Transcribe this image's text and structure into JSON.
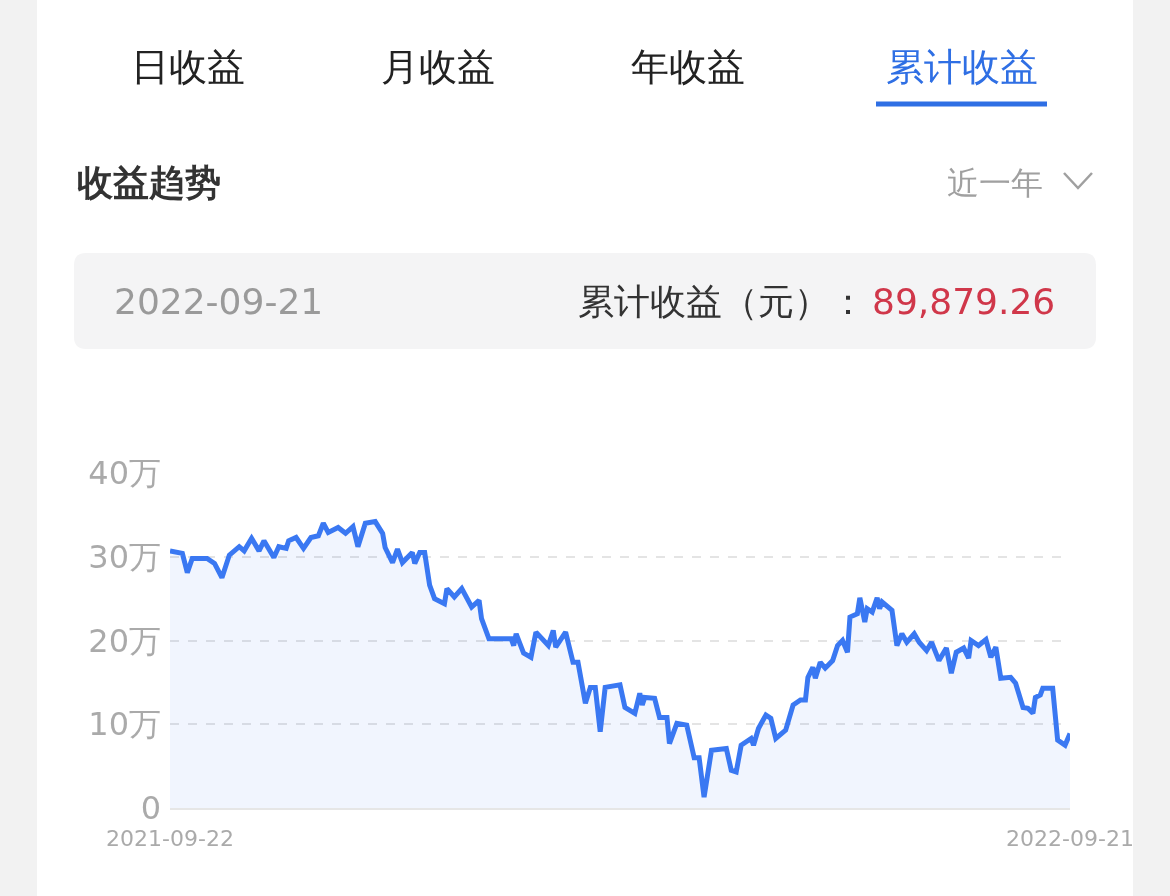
{
  "chart_data": {
    "type": "area",
    "title": "收益趋势",
    "annotations": [
      "日收益",
      "月收益",
      "年收益",
      "累计收益",
      "近一年",
      "2022-09-21",
      "累计收益（元）：",
      "89,879.26"
    ],
    "x": [
      "2021-09-22",
      "2021-09-27",
      "2021-09-29",
      "2021-10-01",
      "2021-10-07",
      "2021-10-10",
      "2021-10-13",
      "2021-10-16",
      "2021-10-20",
      "2021-10-22",
      "2021-10-25",
      "2021-10-28",
      "2021-10-30",
      "2021-11-03",
      "2021-11-05",
      "2021-11-08",
      "2021-11-09",
      "2021-11-12",
      "2021-11-15",
      "2021-11-18",
      "2021-11-21",
      "2021-11-23",
      "2021-11-25",
      "2021-11-29",
      "2021-12-02",
      "2021-12-05",
      "2021-12-07",
      "2021-12-10",
      "2021-12-14",
      "2021-12-17",
      "2021-12-18",
      "2021-12-21",
      "2021-12-23",
      "2021-12-25",
      "2021-12-29",
      "2021-12-30",
      "2022-01-01",
      "2022-01-03",
      "2022-01-05",
      "2022-01-07",
      "2022-01-11",
      "2022-01-12",
      "2022-01-15",
      "2022-01-18",
      "2022-01-22",
      "2022-01-25",
      "2022-01-26",
      "2022-01-29",
      "2022-02-07",
      "2022-02-08",
      "2022-02-09",
      "2022-02-12",
      "2022-02-15",
      "2022-02-17",
      "2022-02-22",
      "2022-02-24",
      "2022-02-25",
      "2022-03-01",
      "2022-03-04",
      "2022-03-06",
      "2022-03-09",
      "2022-03-11",
      "2022-03-13",
      "2022-03-15",
      "2022-03-17",
      "2022-03-23",
      "2022-03-25",
      "2022-03-29",
      "2022-03-31",
      "2022-04-01",
      "2022-04-02",
      "2022-04-06",
      "2022-04-08",
      "2022-04-11",
      "2022-04-12",
      "2022-04-15",
      "2022-04-19",
      "2022-04-22",
      "2022-04-24",
      "2022-04-26",
      "2022-04-29",
      "2022-05-05",
      "2022-05-07",
      "2022-05-09",
      "2022-05-11",
      "2022-05-15",
      "2022-05-16",
      "2022-05-18",
      "2022-05-21",
      "2022-05-23",
      "2022-05-25",
      "2022-05-29",
      "2022-06-01",
      "2022-06-04",
      "2022-06-06",
      "2022-06-07",
      "2022-06-09",
      "2022-06-10",
      "2022-06-12",
      "2022-06-14",
      "2022-06-17",
      "2022-06-19",
      "2022-06-21",
      "2022-06-23",
      "2022-06-24",
      "2022-06-27",
      "2022-06-28",
      "2022-06-30",
      "2022-07-01",
      "2022-07-03",
      "2022-07-05",
      "2022-07-06",
      "2022-07-07",
      "2022-07-11",
      "2022-07-13",
      "2022-07-15",
      "2022-07-17",
      "2022-07-20",
      "2022-07-22",
      "2022-07-25",
      "2022-07-27",
      "2022-07-30",
      "2022-08-02",
      "2022-08-04",
      "2022-08-06",
      "2022-08-09",
      "2022-08-11",
      "2022-08-12",
      "2022-08-15",
      "2022-08-18",
      "2022-08-20",
      "2022-08-22",
      "2022-08-24",
      "2022-08-28",
      "2022-08-30",
      "2022-09-02",
      "2022-09-04",
      "2022-09-06",
      "2022-09-07",
      "2022-09-09",
      "2022-09-10",
      "2022-09-14",
      "2022-09-16",
      "2022-09-19",
      "2022-09-21"
    ],
    "series": [
      {
        "color": "#3a78f2",
        "values": [
          30.7,
          30.4,
          28.1,
          29.8,
          29.8,
          29.2,
          27.5,
          30.2,
          31.2,
          30.7,
          32.2,
          30.7,
          31.9,
          29.9,
          31.2,
          31.0,
          31.9,
          32.3,
          31.0,
          32.3,
          32.5,
          34.0,
          32.9,
          33.5,
          32.8,
          33.6,
          31.2,
          34.0,
          34.2,
          32.8,
          31.1,
          29.3,
          30.9,
          29.3,
          30.5,
          29.2,
          30.5,
          30.5,
          26.6,
          25.0,
          24.4,
          26.2,
          25.2,
          26.2,
          24.0,
          24.8,
          22.6,
          20.2,
          20.2,
          19.4,
          20.8,
          18.5,
          18.0,
          21.0,
          19.4,
          21.2,
          19.2,
          21.0,
          17.4,
          17.4,
          12.5,
          14.4,
          14.4,
          9.1,
          14.4,
          14.7,
          12.0,
          11.3,
          13.7,
          12.3,
          13.2,
          13.1,
          10.8,
          10.8,
          7.7,
          10.1,
          9.9,
          6.0,
          6.0,
          1.3,
          6.9,
          7.1,
          4.5,
          4.3,
          7.5,
          8.3,
          7.5,
          9.5,
          11.1,
          10.7,
          8.3,
          9.3,
          12.3,
          12.9,
          12.9,
          15.6,
          16.8,
          15.5,
          17.4,
          16.7,
          17.6,
          19.4,
          20.0,
          18.6,
          22.8,
          23.2,
          25.1,
          22.2,
          23.8,
          23.4,
          25.1,
          23.8,
          24.6,
          23.6,
          19.4,
          20.8,
          19.8,
          20.8,
          19.8,
          18.8,
          19.8,
          17.6,
          19.1,
          16.1,
          18.6,
          19.1,
          17.9,
          20.0,
          19.4,
          20.1,
          18.0,
          19.2,
          15.5,
          15.6,
          14.9,
          12.0,
          11.9,
          11.3,
          13.2,
          13.5,
          14.3,
          14.3,
          8.1,
          7.5,
          8.9
        ]
      }
    ],
    "xlim": [
      "2021-09-22",
      "2022-09-21"
    ],
    "xticks": [
      "2021-09-22",
      "2022-09-21"
    ],
    "ylim": [
      0,
      40
    ],
    "yticks": [
      0,
      {
        "value": 10,
        "label": "10万"
      },
      {
        "value": 20,
        "label": "20万"
      },
      {
        "value": 30,
        "label": "30万"
      },
      {
        "value": 40,
        "label": "40万"
      }
    ],
    "grid": "y",
    "marker": "none",
    "line_style": "solid"
  }
}
